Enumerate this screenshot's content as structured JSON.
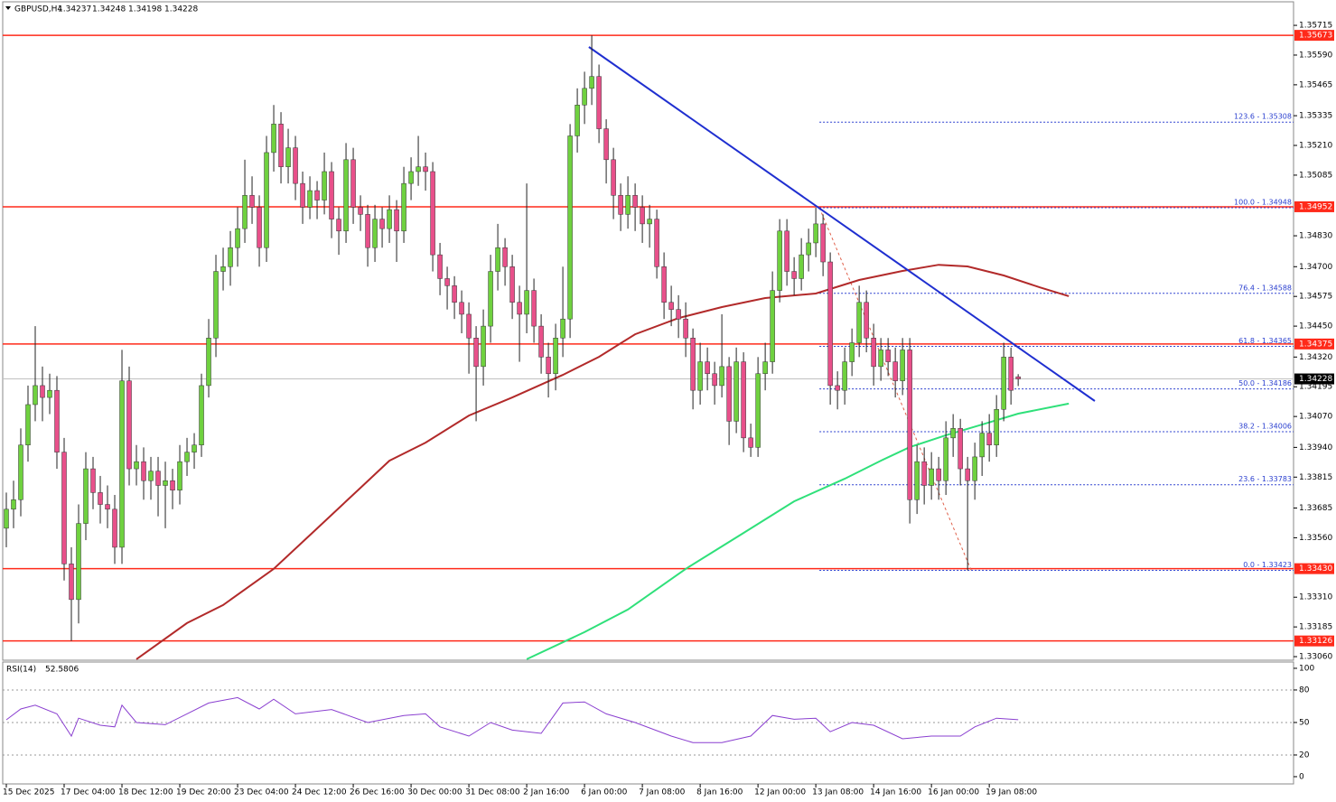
{
  "chart_data": {
    "type": "candlestick",
    "symbol": "GBPUSD,H4",
    "xlim": [
      -0.5,
      178.1
    ],
    "ylim": [
      1.33045,
      1.35814
    ],
    "yticks": [
      1.35715,
      {
        "value": 1.3559,
        "label": "1.35590"
      },
      1.35465,
      1.35335,
      {
        "value": 1.3521,
        "label": "1.35210"
      },
      1.35085,
      {
        "value": 1.3483,
        "label": "1.34830"
      },
      {
        "value": 1.347,
        "label": "1.34700"
      },
      1.34575,
      {
        "value": 1.3445,
        "label": "1.34450"
      },
      {
        "value": 1.3432,
        "label": "1.34320"
      },
      1.34195,
      {
        "value": 1.3407,
        "label": "1.34070"
      },
      {
        "value": 1.3394,
        "label": "1.33940"
      },
      1.33815,
      1.33685,
      {
        "value": 1.3356,
        "label": "1.33560"
      },
      {
        "value": 1.3331,
        "label": "1.33310"
      },
      1.33185,
      {
        "value": 1.3306,
        "label": "1.33060"
      }
    ],
    "xticks": [
      {
        "value": 0,
        "label": "15 Dec 2025"
      },
      {
        "value": 8,
        "label": "17 Dec 04:00"
      },
      {
        "value": 16,
        "label": "18 Dec 12:00"
      },
      {
        "value": 24,
        "label": "19 Dec 20:00"
      },
      {
        "value": 32,
        "label": "23 Dec 04:00"
      },
      {
        "value": 40,
        "label": "24 Dec 12:00"
      },
      {
        "value": 48,
        "label": "26 Dec 16:00"
      },
      {
        "value": 56,
        "label": "30 Dec 00:00"
      },
      {
        "value": 64,
        "label": "31 Dec 08:00"
      },
      {
        "value": 72,
        "label": "2 Jan 16:00"
      },
      {
        "value": 80,
        "label": "6 Jan 00:00"
      },
      {
        "value": 88,
        "label": "7 Jan 08:00"
      },
      {
        "value": 96,
        "label": "8 Jan 16:00"
      },
      {
        "value": 104,
        "label": "12 Jan 00:00"
      },
      {
        "value": 112,
        "label": "13 Jan 08:00"
      },
      {
        "value": 120,
        "label": "14 Jan 16:00"
      },
      {
        "value": 128,
        "label": "16 Jan 00:00"
      },
      {
        "value": 136,
        "label": "19 Jan 08:00"
      }
    ],
    "colors": {
      "up": "#6fd13f",
      "down": "#e8508a",
      "level": "#ff2a1a",
      "trend": "#1f2fd0",
      "fib": "#2a3fcf",
      "fib_line": "#e0604a"
    },
    "candles": [
      [
        1.336,
        1.3375,
        1.3352,
        1.3368
      ],
      [
        1.3368,
        1.338,
        1.336,
        1.3372
      ],
      [
        1.3372,
        1.3402,
        1.3365,
        1.3395
      ],
      [
        1.3395,
        1.342,
        1.3388,
        1.3412
      ],
      [
        1.3412,
        1.3445,
        1.3405,
        1.342
      ],
      [
        1.342,
        1.3428,
        1.3405,
        1.3415
      ],
      [
        1.3415,
        1.3425,
        1.3408,
        1.3418
      ],
      [
        1.3418,
        1.3424,
        1.3385,
        1.3392
      ],
      [
        1.3392,
        1.3398,
        1.3338,
        1.3345
      ],
      [
        1.3345,
        1.3352,
        1.33126,
        1.333
      ],
      [
        1.333,
        1.337,
        1.332,
        1.3362
      ],
      [
        1.3362,
        1.3392,
        1.3355,
        1.3385
      ],
      [
        1.3385,
        1.339,
        1.3368,
        1.3375
      ],
      [
        1.3375,
        1.3382,
        1.3362,
        1.337
      ],
      [
        1.337,
        1.3378,
        1.336,
        1.3368
      ],
      [
        1.3368,
        1.3374,
        1.3345,
        1.3352
      ],
      [
        1.3352,
        1.3435,
        1.3345,
        1.3422
      ],
      [
        1.3422,
        1.3428,
        1.3378,
        1.3385
      ],
      [
        1.3385,
        1.3395,
        1.3378,
        1.3388
      ],
      [
        1.3388,
        1.3394,
        1.3372,
        1.338
      ],
      [
        1.338,
        1.339,
        1.3372,
        1.3384
      ],
      [
        1.3384,
        1.339,
        1.3365,
        1.3378
      ],
      [
        1.3378,
        1.3388,
        1.336,
        1.338
      ],
      [
        1.338,
        1.3385,
        1.3368,
        1.3376
      ],
      [
        1.3376,
        1.3395,
        1.337,
        1.3388
      ],
      [
        1.3388,
        1.3398,
        1.3382,
        1.3392
      ],
      [
        1.3392,
        1.34,
        1.3385,
        1.3395
      ],
      [
        1.3395,
        1.3425,
        1.339,
        1.342
      ],
      [
        1.342,
        1.3448,
        1.3415,
        1.344
      ],
      [
        1.344,
        1.3475,
        1.3432,
        1.3468
      ],
      [
        1.3468,
        1.3478,
        1.346,
        1.347
      ],
      [
        1.347,
        1.3485,
        1.3462,
        1.3478
      ],
      [
        1.3478,
        1.3495,
        1.347,
        1.3486
      ],
      [
        1.3486,
        1.3515,
        1.348,
        1.35
      ],
      [
        1.35,
        1.3508,
        1.3488,
        1.3495
      ],
      [
        1.3495,
        1.35,
        1.347,
        1.3478
      ],
      [
        1.3478,
        1.3525,
        1.3472,
        1.3518
      ],
      [
        1.3518,
        1.3538,
        1.351,
        1.353
      ],
      [
        1.353,
        1.3535,
        1.3505,
        1.3512
      ],
      [
        1.3512,
        1.3528,
        1.3505,
        1.352
      ],
      [
        1.352,
        1.3525,
        1.3498,
        1.3505
      ],
      [
        1.3505,
        1.351,
        1.3488,
        1.3495
      ],
      [
        1.3495,
        1.3508,
        1.349,
        1.3502
      ],
      [
        1.3502,
        1.3506,
        1.349,
        1.3498
      ],
      [
        1.3498,
        1.3518,
        1.3492,
        1.351
      ],
      [
        1.351,
        1.3514,
        1.3482,
        1.349
      ],
      [
        1.349,
        1.3495,
        1.3475,
        1.3485
      ],
      [
        1.3485,
        1.3522,
        1.348,
        1.3515
      ],
      [
        1.3515,
        1.352,
        1.3488,
        1.3495
      ],
      [
        1.3495,
        1.35,
        1.3485,
        1.3492
      ],
      [
        1.3492,
        1.3496,
        1.347,
        1.3478
      ],
      [
        1.3478,
        1.3496,
        1.3472,
        1.349
      ],
      [
        1.349,
        1.3495,
        1.3478,
        1.3486
      ],
      [
        1.3486,
        1.35,
        1.348,
        1.3494
      ],
      [
        1.3494,
        1.3498,
        1.3472,
        1.3485
      ],
      [
        1.3485,
        1.3512,
        1.348,
        1.3505
      ],
      [
        1.3505,
        1.3516,
        1.3498,
        1.351
      ],
      [
        1.351,
        1.3525,
        1.3504,
        1.3512
      ],
      [
        1.3512,
        1.3518,
        1.3502,
        1.351
      ],
      [
        1.351,
        1.3514,
        1.3468,
        1.3475
      ],
      [
        1.3475,
        1.348,
        1.3458,
        1.3465
      ],
      [
        1.3465,
        1.347,
        1.3452,
        1.3462
      ],
      [
        1.3462,
        1.3466,
        1.3448,
        1.3455
      ],
      [
        1.3455,
        1.346,
        1.3442,
        1.345
      ],
      [
        1.345,
        1.3455,
        1.3425,
        1.344
      ],
      [
        1.344,
        1.3445,
        1.3405,
        1.3428
      ],
      [
        1.3428,
        1.3452,
        1.342,
        1.3445
      ],
      [
        1.3445,
        1.3475,
        1.3438,
        1.3468
      ],
      [
        1.3468,
        1.3488,
        1.346,
        1.3478
      ],
      [
        1.3478,
        1.3482,
        1.3462,
        1.347
      ],
      [
        1.347,
        1.3475,
        1.3448,
        1.3455
      ],
      [
        1.3455,
        1.3462,
        1.343,
        1.345
      ],
      [
        1.345,
        1.3505,
        1.3442,
        1.346
      ],
      [
        1.346,
        1.3465,
        1.3438,
        1.3445
      ],
      [
        1.3445,
        1.345,
        1.3425,
        1.3432
      ],
      [
        1.3432,
        1.3438,
        1.3415,
        1.3425
      ],
      [
        1.3425,
        1.3446,
        1.3418,
        1.344
      ],
      [
        1.344,
        1.347,
        1.3432,
        1.3448
      ],
      [
        1.3448,
        1.353,
        1.344,
        1.3525
      ],
      [
        1.3525,
        1.3545,
        1.3518,
        1.3538
      ],
      [
        1.3538,
        1.3552,
        1.353,
        1.3545
      ],
      [
        1.3545,
        1.35673,
        1.3538,
        1.355
      ],
      [
        1.355,
        1.3555,
        1.3522,
        1.3528
      ],
      [
        1.3528,
        1.3532,
        1.3505,
        1.3515
      ],
      [
        1.3515,
        1.352,
        1.349,
        1.35
      ],
      [
        1.35,
        1.3505,
        1.3485,
        1.3492
      ],
      [
        1.3492,
        1.3508,
        1.3486,
        1.35
      ],
      [
        1.35,
        1.3505,
        1.3485,
        1.3495
      ],
      [
        1.3495,
        1.35,
        1.348,
        1.3488
      ],
      [
        1.3488,
        1.3496,
        1.3478,
        1.349
      ],
      [
        1.349,
        1.3494,
        1.3465,
        1.347
      ],
      [
        1.347,
        1.3476,
        1.3448,
        1.3455
      ],
      [
        1.3455,
        1.3462,
        1.3445,
        1.3452
      ],
      [
        1.3452,
        1.3458,
        1.344,
        1.3448
      ],
      [
        1.3448,
        1.3455,
        1.3432,
        1.344
      ],
      [
        1.344,
        1.3444,
        1.341,
        1.3418
      ],
      [
        1.3418,
        1.3438,
        1.3412,
        1.343
      ],
      [
        1.343,
        1.3436,
        1.3418,
        1.3425
      ],
      [
        1.3425,
        1.343,
        1.3412,
        1.342
      ],
      [
        1.342,
        1.345,
        1.3415,
        1.3428
      ],
      [
        1.3428,
        1.3432,
        1.3395,
        1.3405
      ],
      [
        1.3405,
        1.3436,
        1.34,
        1.343
      ],
      [
        1.343,
        1.3434,
        1.3392,
        1.3398
      ],
      [
        1.3398,
        1.3404,
        1.339,
        1.3394
      ],
      [
        1.3394,
        1.3432,
        1.339,
        1.3425
      ],
      [
        1.3425,
        1.3438,
        1.3418,
        1.343
      ],
      [
        1.343,
        1.3468,
        1.3425,
        1.346
      ],
      [
        1.346,
        1.349,
        1.3455,
        1.3485
      ],
      [
        1.3485,
        1.349,
        1.3462,
        1.3468
      ],
      [
        1.3468,
        1.3474,
        1.3458,
        1.3465
      ],
      [
        1.3465,
        1.3482,
        1.346,
        1.3475
      ],
      [
        1.3475,
        1.3486,
        1.3468,
        1.348
      ],
      [
        1.348,
        1.34948,
        1.3474,
        1.3488
      ],
      [
        1.3488,
        1.3492,
        1.3466,
        1.3472
      ],
      [
        1.3472,
        1.3476,
        1.3412,
        1.342
      ],
      [
        1.342,
        1.3426,
        1.341,
        1.3418
      ],
      [
        1.3418,
        1.3436,
        1.3412,
        1.343
      ],
      [
        1.343,
        1.3444,
        1.3424,
        1.3438
      ],
      [
        1.3438,
        1.3462,
        1.3432,
        1.3455
      ],
      [
        1.3455,
        1.346,
        1.3434,
        1.344
      ],
      [
        1.344,
        1.3446,
        1.342,
        1.3428
      ],
      [
        1.3428,
        1.344,
        1.3422,
        1.3435
      ],
      [
        1.3435,
        1.344,
        1.3424,
        1.343
      ],
      [
        1.343,
        1.3436,
        1.3415,
        1.3422
      ],
      [
        1.3422,
        1.344,
        1.3416,
        1.3435
      ],
      [
        1.3435,
        1.344,
        1.3362,
        1.3372
      ],
      [
        1.3372,
        1.3395,
        1.3366,
        1.3388
      ],
      [
        1.3388,
        1.3394,
        1.337,
        1.3378
      ],
      [
        1.3378,
        1.3392,
        1.3372,
        1.3385
      ],
      [
        1.3385,
        1.339,
        1.3372,
        1.338
      ],
      [
        1.338,
        1.3405,
        1.3374,
        1.3398
      ],
      [
        1.3398,
        1.3408,
        1.339,
        1.3402
      ],
      [
        1.3402,
        1.3406,
        1.3378,
        1.3385
      ],
      [
        1.3385,
        1.339,
        1.33423,
        1.338
      ],
      [
        1.338,
        1.3396,
        1.3372,
        1.339
      ],
      [
        1.339,
        1.3405,
        1.3382,
        1.34
      ],
      [
        1.34,
        1.3408,
        1.3388,
        1.3395
      ],
      [
        1.3395,
        1.3416,
        1.339,
        1.341
      ],
      [
        1.341,
        1.3438,
        1.3405,
        1.3432
      ],
      [
        1.3432,
        1.3436,
        1.3412,
        1.3418
      ],
      [
        1.34237,
        1.34248,
        1.34198,
        1.34228
      ]
    ],
    "moving_averages": [
      {
        "color": "#b22a2a",
        "x": [
          18,
          25,
          30,
          37,
          43,
          49,
          53,
          58,
          64,
          70,
          77,
          82,
          87,
          93,
          99,
          105,
          112,
          118,
          124,
          129,
          133,
          138,
          143,
          147
        ],
        "values": [
          1.33049,
          1.33201,
          1.33277,
          1.33429,
          1.33599,
          1.3377,
          1.33884,
          1.3396,
          1.34074,
          1.3415,
          1.34245,
          1.34321,
          1.34416,
          1.34484,
          1.3453,
          1.34568,
          1.34587,
          1.34644,
          1.34682,
          1.34708,
          1.34701,
          1.34663,
          1.34613,
          1.34576
        ]
      },
      {
        "color": "#2fe07a",
        "x": [
          72,
          80,
          86,
          94,
          102,
          109,
          116,
          121,
          125,
          130,
          135,
          140,
          147
        ],
        "values": [
          1.33049,
          1.33163,
          1.33258,
          1.33429,
          1.3358,
          1.33713,
          1.33808,
          1.33884,
          1.33941,
          1.33991,
          1.34036,
          1.34082,
          1.34124
        ]
      }
    ],
    "trend_line": {
      "x": [
        80.6,
        150.6
      ],
      "values": [
        1.35624,
        1.34135
      ]
    },
    "fib_line": {
      "x": [
        112.5,
        133.5
      ],
      "values": [
        1.34948,
        1.33423
      ]
    },
    "fib_levels": [
      {
        "value": 1.35308,
        "label": "123.6 - 1.35308"
      },
      {
        "value": 1.34948,
        "label": "100.0 - 1.34948"
      },
      {
        "value": 1.34588,
        "label": "76.4 - 1.34588"
      },
      {
        "value": 1.34365,
        "label": "61.8 - 1.34365"
      },
      {
        "value": 1.34186,
        "label": "50.0 - 1.34186"
      },
      {
        "value": 1.34006,
        "label": "38.2 - 1.34006"
      },
      {
        "value": 1.33783,
        "label": "23.6 - 1.33783"
      },
      {
        "value": 1.33423,
        "label": "0.0 - 1.33423"
      }
    ],
    "levels": [
      1.35673,
      1.34952,
      1.34375,
      {
        "value": 1.3343,
        "label": "1.33430"
      },
      1.33126
    ],
    "current_price": 1.34228,
    "rsi": {
      "name": "RSI(14)",
      "color": "#8a3fd0",
      "ylim": [
        -6.7,
        105.8
      ],
      "yticks": [
        0,
        20,
        50,
        80,
        100
      ],
      "levels": [
        20,
        50,
        80
      ],
      "x": [
        0,
        2,
        4,
        7,
        9,
        10,
        13,
        15,
        16,
        18,
        22,
        25,
        28,
        32,
        35,
        37,
        40,
        45,
        50,
        55,
        58,
        60,
        64,
        67,
        70,
        74,
        77,
        80,
        83,
        87,
        92,
        95,
        99,
        103,
        106,
        109,
        112,
        114,
        117,
        120,
        124,
        128,
        132,
        134,
        137,
        140
      ],
      "values": [
        52.5,
        62.5,
        66,
        58,
        37.5,
        54,
        47.5,
        46,
        66,
        50,
        48,
        58,
        68,
        73,
        62.5,
        71.5,
        58,
        62,
        50,
        56.5,
        58,
        46,
        37.5,
        50,
        43,
        40,
        68,
        69,
        58,
        50,
        37.5,
        31.5,
        31.5,
        37.5,
        56.5,
        53,
        54,
        41.5,
        50,
        47.5,
        35,
        37.5,
        37.5,
        46,
        54,
        52.5806
      ]
    }
  }
}
